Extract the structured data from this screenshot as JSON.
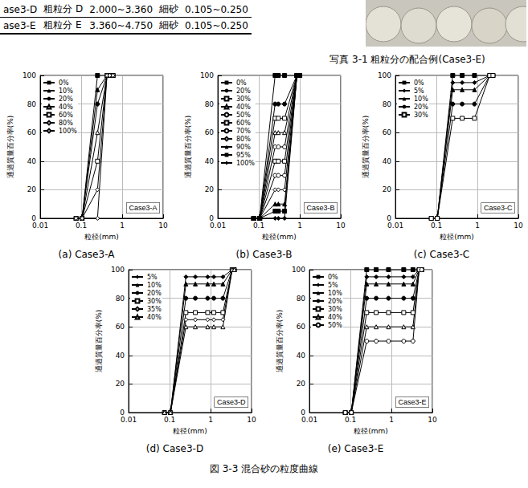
{
  "table": {
    "rows": [
      [
        "ase3-D",
        "粗粒分 D",
        "2.000~3.360",
        "細砂",
        "0.105~0.250"
      ],
      [
        "ase3-E",
        "粗粒分 E",
        "3.360~4.750",
        "細砂",
        "0.105~0.250"
      ]
    ]
  },
  "photo": {
    "caption": "写真 3-1  粗粒分の配合例(Case3-E)"
  },
  "chart_data": [
    {
      "type": "line",
      "caption": "(a) Case3-A",
      "annotation": "Case3-A",
      "xlabel": "粒径(mm)",
      "ylabel": "通過質量百分率(%)",
      "log": "x",
      "grid": true,
      "legend": "top-left",
      "xlim": [
        0.01,
        10
      ],
      "xticks": [
        0.01,
        0.1,
        1,
        10
      ],
      "ylim": [
        0,
        100
      ],
      "yticks": [
        0,
        20,
        40,
        60,
        80,
        100
      ],
      "x": [
        0.075,
        0.105,
        0.25,
        0.425,
        0.5,
        0.6
      ],
      "series": [
        {
          "name": "0%",
          "color": "#000000",
          "marker": "square",
          "values": [
            0,
            0,
            100,
            100,
            100,
            100
          ]
        },
        {
          "name": "10%",
          "color": "#000000",
          "marker": "triangle",
          "values": [
            0,
            0,
            90,
            100,
            100,
            100
          ]
        },
        {
          "name": "20%",
          "color": "#000000",
          "marker": "circle",
          "values": [
            0,
            0,
            80,
            100,
            100,
            100
          ]
        },
        {
          "name": "40%",
          "color": "#000000",
          "marker": "open-triangle",
          "values": [
            0,
            0,
            60,
            100,
            100,
            100
          ]
        },
        {
          "name": "60%",
          "color": "#000000",
          "marker": "open-square",
          "values": [
            0,
            0,
            40,
            100,
            100,
            100
          ]
        },
        {
          "name": "80%",
          "color": "#000000",
          "marker": "open-diamond",
          "values": [
            0,
            0,
            20,
            100,
            100,
            100
          ]
        },
        {
          "name": "100%",
          "color": "#000000",
          "marker": "open-diamond",
          "values": [
            0,
            0,
            0,
            100,
            100,
            100
          ]
        }
      ]
    },
    {
      "type": "line",
      "caption": "(b) Case3-B",
      "annotation": "Case3-B",
      "xlabel": "粒径(mm)",
      "ylabel": "通過質量百分率(%)",
      "log": "x",
      "grid": true,
      "legend": "top-left",
      "xlim": [
        0.01,
        10
      ],
      "xticks": [
        0.01,
        0.1,
        1,
        10
      ],
      "ylim": [
        0,
        100
      ],
      "yticks": [
        0,
        20,
        40,
        60,
        80,
        100
      ],
      "x": [
        0.075,
        0.105,
        0.25,
        0.3,
        0.425,
        0.85,
        1.0
      ],
      "series": [
        {
          "name": "0%",
          "color": "#000000",
          "marker": "square",
          "values": [
            0,
            0,
            100,
            100,
            100,
            100,
            100
          ]
        },
        {
          "name": "20%",
          "color": "#000000",
          "marker": "circle",
          "values": [
            0,
            0,
            80,
            80,
            80,
            100,
            100
          ]
        },
        {
          "name": "30%",
          "color": "#000000",
          "marker": "open-square",
          "values": [
            0,
            0,
            70,
            70,
            70,
            100,
            100
          ]
        },
        {
          "name": "40%",
          "color": "#000000",
          "marker": "open-triangle",
          "values": [
            0,
            0,
            60,
            60,
            60,
            100,
            100
          ]
        },
        {
          "name": "50%",
          "color": "#000000",
          "marker": "open-circle",
          "values": [
            0,
            0,
            50,
            50,
            50,
            100,
            100
          ]
        },
        {
          "name": "60%",
          "color": "#000000",
          "marker": "open-square",
          "values": [
            0,
            0,
            40,
            40,
            40,
            100,
            100
          ]
        },
        {
          "name": "70%",
          "color": "#000000",
          "marker": "open-circle",
          "values": [
            0,
            0,
            30,
            30,
            30,
            100,
            100
          ]
        },
        {
          "name": "80%",
          "color": "#000000",
          "marker": "open-diamond",
          "values": [
            0,
            0,
            20,
            20,
            20,
            100,
            100
          ]
        },
        {
          "name": "90%",
          "color": "#000000",
          "marker": "triangle",
          "values": [
            0,
            0,
            10,
            10,
            10,
            100,
            100
          ]
        },
        {
          "name": "95%",
          "color": "#000000",
          "marker": "square",
          "values": [
            0,
            0,
            5,
            5,
            5,
            100,
            100
          ]
        },
        {
          "name": "100%",
          "color": "#000000",
          "marker": "diamond",
          "values": [
            0,
            0,
            0,
            0,
            0,
            100,
            100
          ]
        }
      ]
    },
    {
      "type": "line",
      "caption": "(c) Case3-C",
      "annotation": "Case3-C",
      "xlabel": "粒径(mm)",
      "ylabel": "通過質量百分率(%)",
      "log": "x",
      "grid": true,
      "legend": "top-left",
      "xlim": [
        0.01,
        10
      ],
      "xticks": [
        0.01,
        0.1,
        1,
        10
      ],
      "ylim": [
        0,
        100
      ],
      "yticks": [
        0,
        20,
        40,
        60,
        80,
        100
      ],
      "x": [
        0.075,
        0.105,
        0.25,
        0.425,
        0.85,
        2.0,
        2.4
      ],
      "series": [
        {
          "name": "0%",
          "color": "#000000",
          "marker": "square",
          "values": [
            0,
            0,
            100,
            100,
            100,
            100,
            100
          ]
        },
        {
          "name": "5%",
          "color": "#000000",
          "marker": "diamond",
          "values": [
            0,
            0,
            95,
            95,
            95,
            100,
            100
          ]
        },
        {
          "name": "10%",
          "color": "#000000",
          "marker": "triangle",
          "values": [
            0,
            0,
            90,
            90,
            90,
            100,
            100
          ]
        },
        {
          "name": "20%",
          "color": "#000000",
          "marker": "circle",
          "values": [
            0,
            0,
            80,
            80,
            80,
            100,
            100
          ]
        },
        {
          "name": "30%",
          "color": "#000000",
          "marker": "open-square",
          "values": [
            0,
            0,
            70,
            70,
            70,
            100,
            100
          ]
        }
      ]
    },
    {
      "type": "line",
      "caption": "(d) Case3-D",
      "annotation": "Case3-D",
      "xlabel": "粒径(mm)",
      "ylabel": "通過質量百分率(%)",
      "log": "x",
      "grid": true,
      "legend": "top-left",
      "xlim": [
        0.01,
        10
      ],
      "xticks": [
        0.01,
        0.1,
        1,
        10
      ],
      "ylim": [
        0,
        100
      ],
      "yticks": [
        0,
        20,
        40,
        60,
        80,
        100
      ],
      "x": [
        0.075,
        0.105,
        0.25,
        0.425,
        0.85,
        1.2,
        2.0,
        3.36,
        3.8
      ],
      "series": [
        {
          "name": "5%",
          "color": "#000000",
          "marker": "diamond",
          "values": [
            0,
            0,
            95,
            95,
            95,
            95,
            95,
            100,
            100
          ]
        },
        {
          "name": "10%",
          "color": "#000000",
          "marker": "triangle",
          "values": [
            0,
            0,
            90,
            90,
            90,
            90,
            90,
            100,
            100
          ]
        },
        {
          "name": "20%",
          "color": "#000000",
          "marker": "circle",
          "values": [
            0,
            0,
            80,
            80,
            80,
            80,
            80,
            100,
            100
          ]
        },
        {
          "name": "30%",
          "color": "#000000",
          "marker": "open-square",
          "values": [
            0,
            0,
            70,
            70,
            70,
            70,
            70,
            100,
            100
          ]
        },
        {
          "name": "35%",
          "color": "#000000",
          "marker": "open-diamond",
          "values": [
            0,
            0,
            65,
            65,
            65,
            65,
            65,
            100,
            100
          ]
        },
        {
          "name": "40%",
          "color": "#000000",
          "marker": "open-triangle",
          "values": [
            0,
            0,
            60,
            60,
            60,
            60,
            60,
            100,
            100
          ]
        }
      ]
    },
    {
      "type": "line",
      "caption": "(e) Case3-E",
      "annotation": "Case3-E",
      "xlabel": "粒径(mm)",
      "ylabel": "通過質量百分率(%)",
      "log": "x",
      "grid": true,
      "legend": "top-left",
      "xlim": [
        0.01,
        10
      ],
      "xticks": [
        0.01,
        0.1,
        1,
        10
      ],
      "ylim": [
        0,
        100
      ],
      "yticks": [
        0,
        20,
        40,
        60,
        80,
        100
      ],
      "x": [
        0.075,
        0.105,
        0.25,
        0.425,
        0.85,
        2.0,
        3.36,
        4.75,
        5.5
      ],
      "series": [
        {
          "name": "0%",
          "color": "#000000",
          "marker": "square",
          "values": [
            0,
            0,
            100,
            100,
            100,
            100,
            100,
            100,
            100
          ]
        },
        {
          "name": "5%",
          "color": "#000000",
          "marker": "diamond",
          "values": [
            0,
            0,
            95,
            95,
            95,
            95,
            95,
            100,
            100
          ]
        },
        {
          "name": "10%",
          "color": "#000000",
          "marker": "triangle",
          "values": [
            0,
            0,
            90,
            90,
            90,
            90,
            90,
            100,
            100
          ]
        },
        {
          "name": "20%",
          "color": "#000000",
          "marker": "circle",
          "values": [
            0,
            0,
            80,
            80,
            80,
            80,
            80,
            100,
            100
          ]
        },
        {
          "name": "30%",
          "color": "#000000",
          "marker": "open-square",
          "values": [
            0,
            0,
            70,
            70,
            70,
            70,
            70,
            100,
            100
          ]
        },
        {
          "name": "40%",
          "color": "#000000",
          "marker": "open-triangle",
          "values": [
            0,
            0,
            60,
            60,
            60,
            60,
            60,
            100,
            100
          ]
        },
        {
          "name": "50%",
          "color": "#000000",
          "marker": "open-circle",
          "values": [
            0,
            0,
            50,
            50,
            50,
            50,
            50,
            100,
            100
          ]
        }
      ]
    }
  ],
  "figure_caption": "図 3-3  混合砂の粒度曲線"
}
